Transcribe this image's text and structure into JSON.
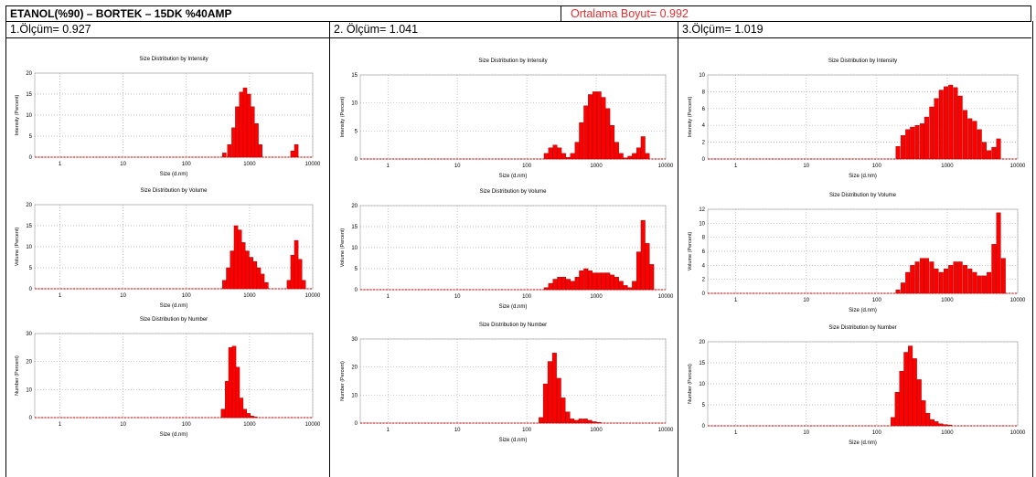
{
  "header": {
    "title": "ETANOL(%90) – BORTEK – 15DK %40AMP",
    "average": "Ortalama Boyut= 0.992"
  },
  "columns": [
    {
      "label": "1.Ölçüm= 0.927"
    },
    {
      "label": "2. Ölçüm= 1.041"
    },
    {
      "label": "3.Ölçüm= 1.019"
    }
  ],
  "colors": {
    "bar": "#ff0000",
    "bar_edge": "#8b0000",
    "avg_text": "#e03030"
  },
  "chart_data": [
    {
      "type": "bar",
      "title": "Size Distribution by Intensity",
      "xlabel": "Size (d.nm)",
      "ylabel": "Intensity (Percent)",
      "xscale": "log",
      "xlim": [
        0.4,
        10000
      ],
      "ylim": [
        0,
        20
      ],
      "yticks": [
        0,
        5,
        10,
        15,
        20
      ],
      "xticks": [
        1,
        10,
        100,
        1000,
        10000
      ],
      "grid": true,
      "x": [
        400,
        480,
        560,
        640,
        740,
        850,
        980,
        1120,
        1290,
        1480,
        4800,
        5500
      ],
      "values": [
        1,
        3,
        7,
        12,
        15.5,
        16.5,
        15,
        12,
        8,
        3,
        1.5,
        3
      ]
    },
    {
      "type": "bar",
      "title": "Size Distribution by Volume",
      "xlabel": "Size (d.nm)",
      "ylabel": "Volume (Percent)",
      "xscale": "log",
      "xlim": [
        0.4,
        10000
      ],
      "ylim": [
        0,
        20
      ],
      "yticks": [
        0,
        5,
        10,
        15,
        20
      ],
      "xticks": [
        1,
        10,
        100,
        1000,
        10000
      ],
      "grid": true,
      "x": [
        400,
        460,
        530,
        610,
        700,
        800,
        920,
        1060,
        1220,
        1400,
        1600,
        1850,
        4200,
        4800,
        5500,
        6300,
        7200
      ],
      "values": [
        2,
        5,
        9,
        15,
        14,
        11,
        9,
        7.5,
        6.5,
        5,
        3.5,
        1.5,
        2,
        8,
        11.5,
        7,
        2
      ]
    },
    {
      "type": "bar",
      "title": "Size Distribution by Number",
      "xlabel": "Size (d.nm)",
      "ylabel": "Number (Percent)",
      "xscale": "log",
      "xlim": [
        0.4,
        10000
      ],
      "ylim": [
        0,
        30
      ],
      "yticks": [
        0,
        10,
        20,
        30
      ],
      "xticks": [
        1,
        10,
        100,
        1000,
        10000
      ],
      "grid": true,
      "x": [
        380,
        440,
        500,
        570,
        650,
        740,
        840,
        960,
        1090,
        1240
      ],
      "values": [
        3,
        13,
        25,
        25.5,
        18,
        7,
        3,
        1.5,
        0.6,
        0.3
      ]
    },
    {
      "type": "bar",
      "title": "Size Distribution by Intensity",
      "xlabel": "Size (d.nm)",
      "ylabel": "Intensity (Percent)",
      "xscale": "log",
      "xlim": [
        0.4,
        10000
      ],
      "ylim": [
        0,
        15
      ],
      "yticks": [
        0,
        5,
        10,
        15
      ],
      "xticks": [
        1,
        10,
        100,
        1000,
        10000
      ],
      "grid": true,
      "x": [
        190,
        220,
        255,
        295,
        340,
        395,
        455,
        530,
        610,
        710,
        820,
        950,
        1100,
        1270,
        1470,
        1700,
        1970,
        2280,
        2640,
        3050,
        3530,
        4080,
        4720,
        5460
      ],
      "values": [
        1,
        2,
        2.5,
        2,
        1,
        0.3,
        1,
        3,
        6.5,
        9.5,
        11.5,
        12,
        12,
        11,
        9,
        6,
        3,
        1,
        0.2,
        0.5,
        1,
        2,
        4,
        1
      ]
    },
    {
      "type": "bar",
      "title": "Size Distribution by Volume",
      "xlabel": "Size (d.nm)",
      "ylabel": "Volume (Percent)",
      "xscale": "log",
      "xlim": [
        0.4,
        10000
      ],
      "ylim": [
        0,
        20
      ],
      "yticks": [
        0,
        5,
        10,
        15,
        20
      ],
      "xticks": [
        1,
        10,
        100,
        1000,
        10000
      ],
      "grid": true,
      "x": [
        190,
        220,
        255,
        295,
        340,
        395,
        455,
        530,
        610,
        710,
        820,
        950,
        1100,
        1270,
        1470,
        1700,
        1970,
        2280,
        2640,
        3050,
        3530,
        4080,
        4720,
        5460,
        6300
      ],
      "values": [
        0.5,
        1.5,
        2.5,
        3,
        3,
        2.5,
        2,
        3,
        4.5,
        5,
        4.5,
        4,
        4,
        4,
        4,
        3.5,
        3,
        2,
        1,
        0.5,
        2,
        9,
        16.5,
        11,
        6
      ]
    },
    {
      "type": "bar",
      "title": "Size Distribution by Number",
      "xlabel": "Size (d.nm)",
      "ylabel": "Number (Percent)",
      "xscale": "log",
      "xlim": [
        0.4,
        10000
      ],
      "ylim": [
        0,
        30
      ],
      "yticks": [
        0,
        10,
        20,
        30
      ],
      "xticks": [
        1,
        10,
        100,
        1000,
        10000
      ],
      "grid": true,
      "x": [
        160,
        185,
        215,
        250,
        290,
        335,
        390,
        450,
        520,
        600,
        700,
        810,
        940,
        1090
      ],
      "values": [
        2,
        14,
        22,
        25,
        16,
        9,
        4,
        1.5,
        1,
        1.5,
        1.5,
        1,
        0.5,
        0.3
      ]
    },
    {
      "type": "bar",
      "title": "Size Distribution by Intensity",
      "xlabel": "Size (d.nm)",
      "ylabel": "Intensity (Percent)",
      "xscale": "log",
      "xlim": [
        0.4,
        10000
      ],
      "ylim": [
        0,
        10
      ],
      "yticks": [
        0,
        2,
        4,
        6,
        8,
        10
      ],
      "xticks": [
        1,
        10,
        100,
        1000,
        10000
      ],
      "grid": true,
      "x": [
        200,
        235,
        275,
        320,
        375,
        440,
        510,
        600,
        700,
        820,
        960,
        1120,
        1310,
        1530,
        1790,
        2100,
        2450,
        2870,
        3350,
        3920,
        4580,
        5350
      ],
      "values": [
        1.5,
        2.8,
        3.5,
        3.8,
        4,
        4.2,
        5,
        6.2,
        7.2,
        8.2,
        8.6,
        8.8,
        8.5,
        7.5,
        5.8,
        4.8,
        4.5,
        3.5,
        2,
        1,
        1.4,
        2.4
      ]
    },
    {
      "type": "bar",
      "title": "Size Distribution by Volume",
      "xlabel": "Size (d.nm)",
      "ylabel": "Volume (Percent)",
      "xscale": "log",
      "xlim": [
        0.4,
        10000
      ],
      "ylim": [
        0,
        12
      ],
      "yticks": [
        0,
        2,
        4,
        6,
        8,
        10,
        12
      ],
      "xticks": [
        1,
        10,
        100,
        1000,
        10000
      ],
      "grid": true,
      "x": [
        200,
        235,
        275,
        320,
        375,
        440,
        510,
        600,
        700,
        820,
        960,
        1120,
        1310,
        1530,
        1790,
        2100,
        2450,
        2870,
        3350,
        3920,
        4580,
        5350,
        6250
      ],
      "values": [
        0.5,
        1.5,
        3,
        4,
        4.5,
        5,
        5,
        4.5,
        3.5,
        3,
        3.5,
        4,
        4.5,
        4.5,
        4,
        3.5,
        3,
        2.5,
        2.5,
        3,
        7,
        11.5,
        5
      ]
    },
    {
      "type": "bar",
      "title": "Size Distribution by Number",
      "xlabel": "Size (d.nm)",
      "ylabel": "Number (Percent)",
      "xscale": "log",
      "xlim": [
        0.4,
        10000
      ],
      "ylim": [
        0,
        20
      ],
      "yticks": [
        0,
        5,
        10,
        15,
        20
      ],
      "xticks": [
        1,
        10,
        100,
        1000,
        10000
      ],
      "grid": true,
      "x": [
        170,
        195,
        225,
        260,
        300,
        345,
        400,
        460,
        530,
        610,
        700,
        810,
        940,
        1080
      ],
      "values": [
        2,
        8,
        13,
        17.5,
        19,
        16,
        11,
        6,
        3,
        1.5,
        1,
        0.5,
        0.3,
        0.2
      ]
    }
  ]
}
